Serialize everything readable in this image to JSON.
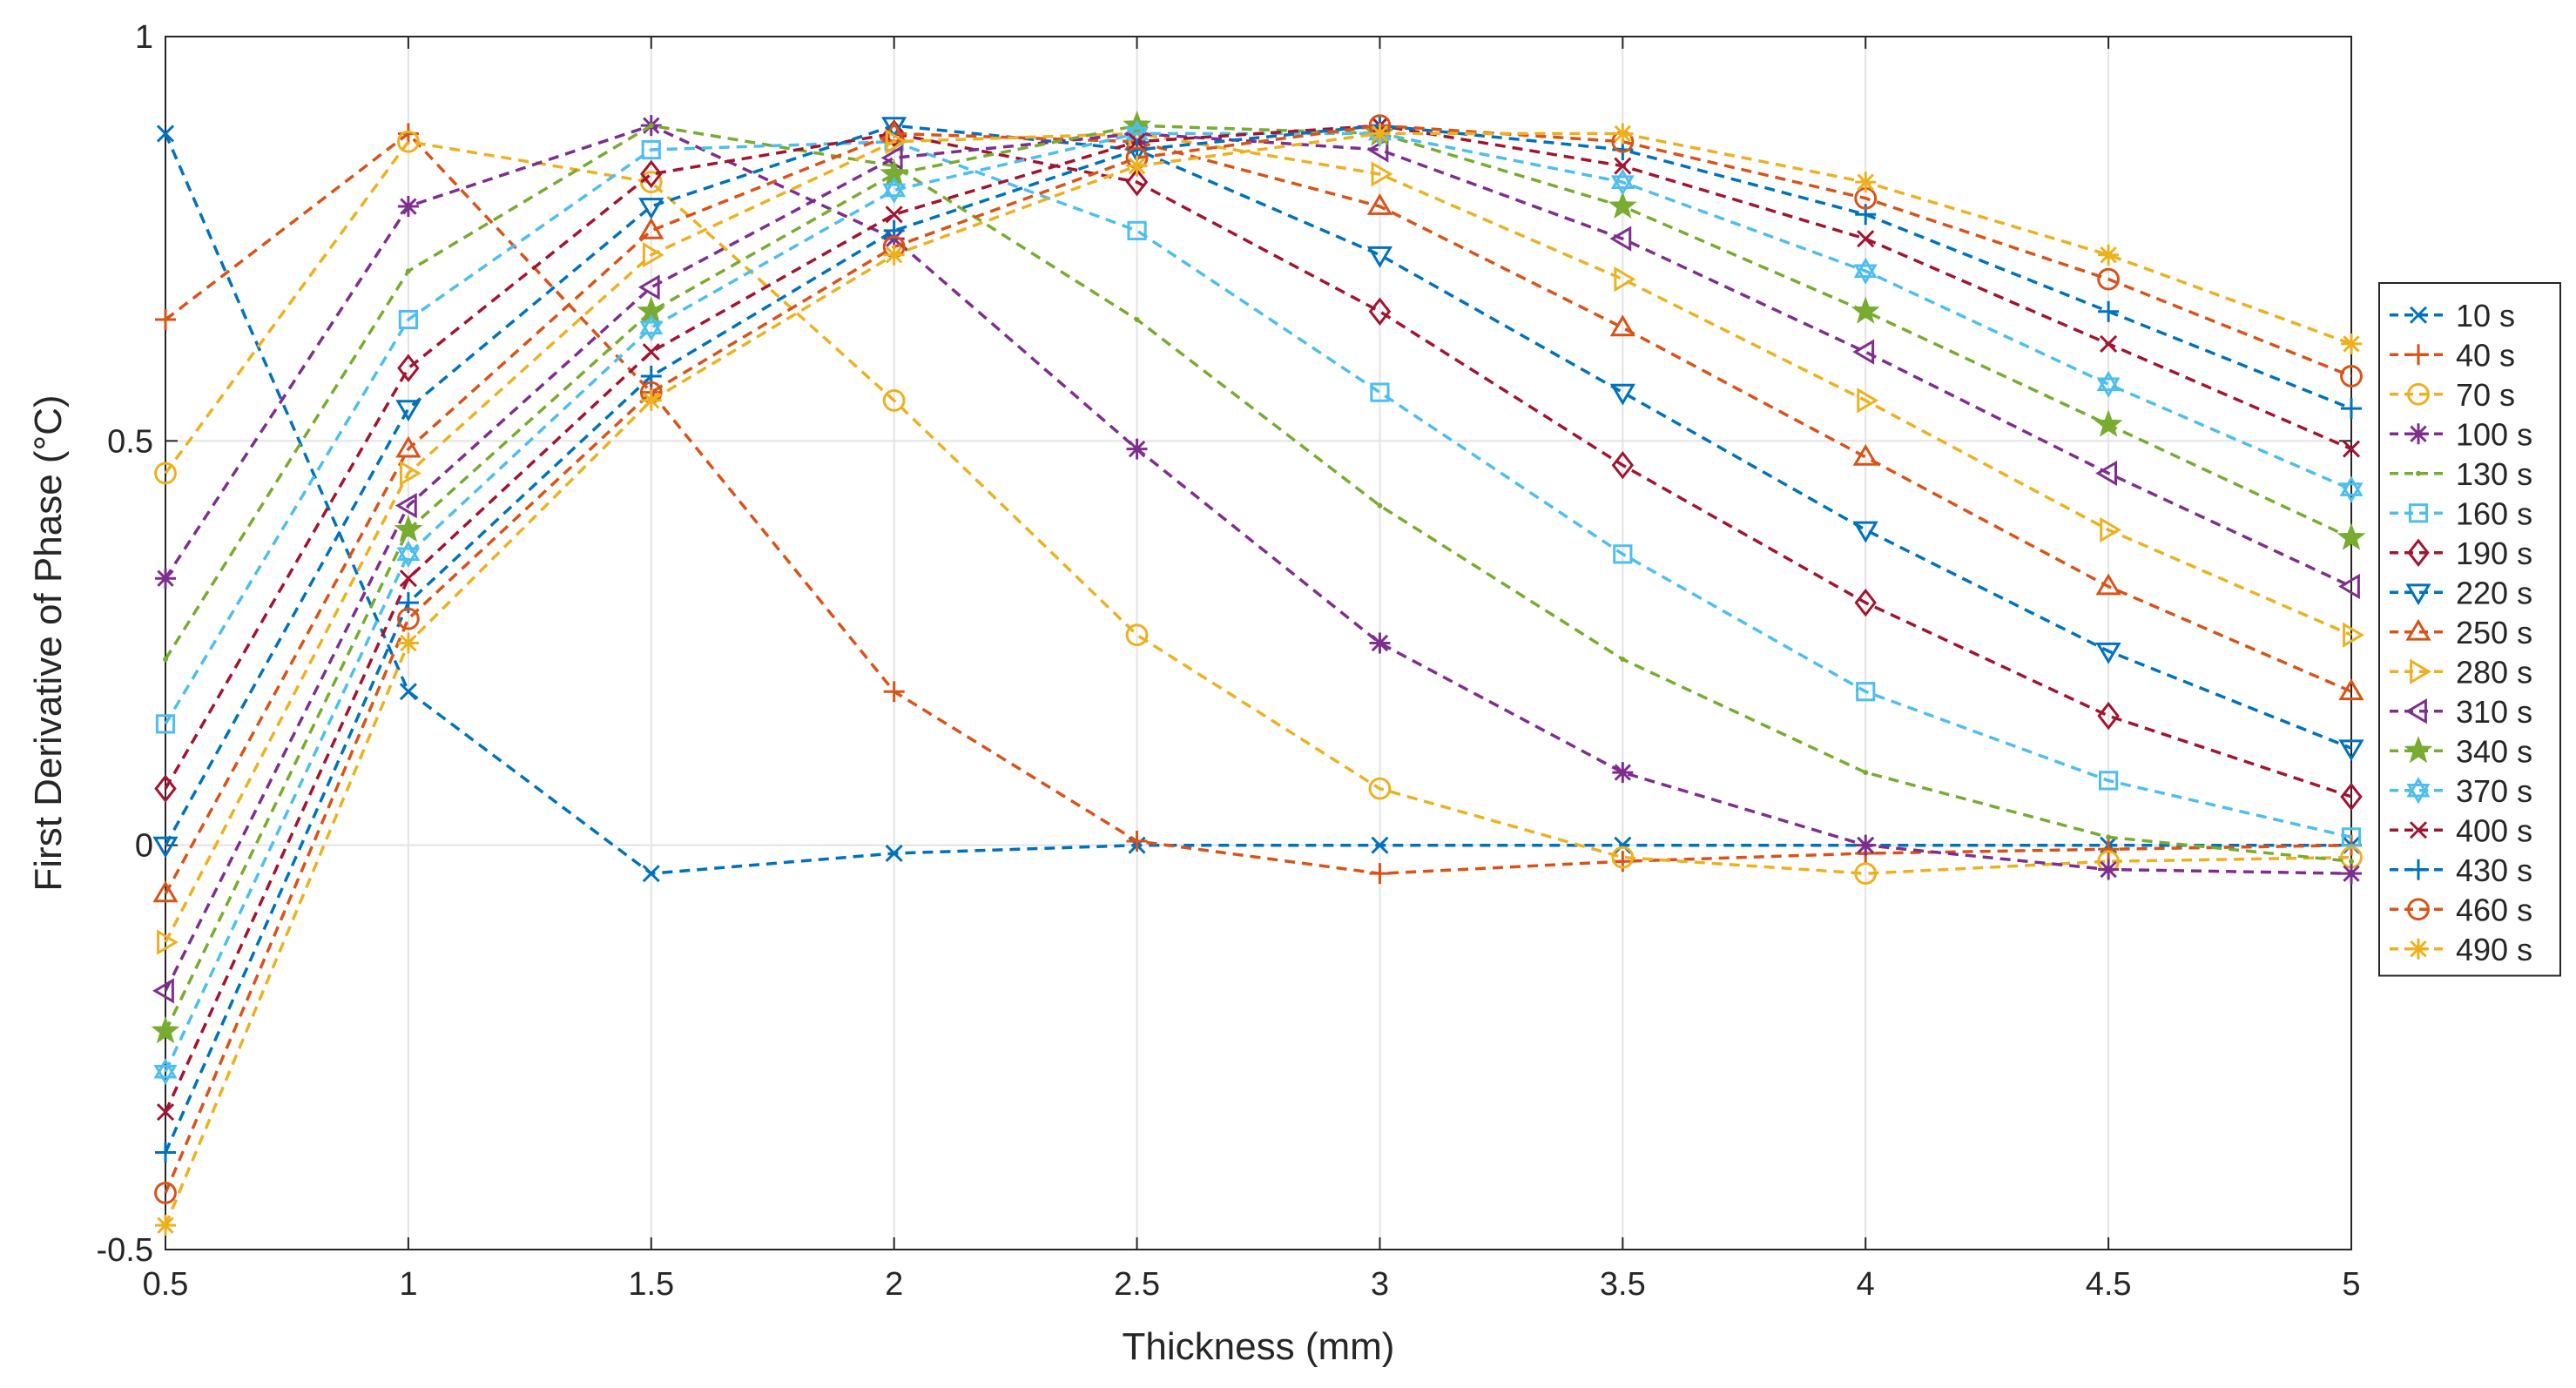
{
  "chart_data": {
    "type": "line",
    "title": "",
    "xlabel": "Thickness (mm)",
    "ylabel": "First Derivative of Phase  (°C)",
    "x": [
      0.5,
      1,
      1.5,
      2,
      2.5,
      3,
      3.5,
      4,
      4.5,
      5
    ],
    "xlim": [
      0.5,
      5
    ],
    "ylim": [
      -0.5,
      1
    ],
    "xticks": [
      "0.5",
      "1",
      "1.5",
      "2",
      "2.5",
      "3",
      "3.5",
      "4",
      "4.5",
      "5"
    ],
    "yticks": [
      "-0.5",
      "0",
      "0.5",
      "1"
    ],
    "grid": true,
    "legend_position": "outside-right",
    "line_style": "dashed",
    "series": [
      {
        "name": "10 s",
        "color": "#0072BD",
        "marker": "x",
        "values": [
          0.88,
          0.19,
          -0.035,
          -0.01,
          0.0,
          0.0,
          0.0,
          0.0,
          0.0,
          0.0
        ]
      },
      {
        "name": "40 s",
        "color": "#D95319",
        "marker": "plus",
        "values": [
          0.65,
          0.88,
          0.56,
          0.19,
          0.005,
          -0.035,
          -0.02,
          -0.01,
          -0.005,
          0.0
        ]
      },
      {
        "name": "70 s",
        "color": "#EDB120",
        "marker": "circle",
        "values": [
          0.46,
          0.87,
          0.82,
          0.55,
          0.26,
          0.07,
          -0.015,
          -0.035,
          -0.02,
          -0.015
        ]
      },
      {
        "name": "100 s",
        "color": "#7E2F8E",
        "marker": "asterisk",
        "values": [
          0.33,
          0.79,
          0.89,
          0.75,
          0.49,
          0.25,
          0.09,
          0.0,
          -0.03,
          -0.035
        ]
      },
      {
        "name": "130 s",
        "color": "#77AC30",
        "marker": "point",
        "values": [
          0.23,
          0.71,
          0.89,
          0.84,
          0.65,
          0.42,
          0.23,
          0.09,
          0.01,
          -0.02
        ]
      },
      {
        "name": "160 s",
        "color": "#4DBEEE",
        "marker": "square",
        "values": [
          0.15,
          0.65,
          0.86,
          0.87,
          0.76,
          0.56,
          0.36,
          0.19,
          0.08,
          0.01
        ]
      },
      {
        "name": "190 s",
        "color": "#A2142F",
        "marker": "diamond",
        "values": [
          0.07,
          0.59,
          0.83,
          0.88,
          0.82,
          0.66,
          0.47,
          0.3,
          0.16,
          0.06
        ]
      },
      {
        "name": "220 s",
        "color": "#0072BD",
        "marker": "tri-down",
        "values": [
          0.0,
          0.54,
          0.79,
          0.89,
          0.86,
          0.73,
          0.56,
          0.39,
          0.24,
          0.12
        ]
      },
      {
        "name": "250 s",
        "color": "#D95319",
        "marker": "tri-up",
        "values": [
          -0.06,
          0.49,
          0.76,
          0.88,
          0.87,
          0.79,
          0.64,
          0.48,
          0.32,
          0.19
        ]
      },
      {
        "name": "280 s",
        "color": "#EDB120",
        "marker": "tri-right",
        "values": [
          -0.12,
          0.46,
          0.73,
          0.87,
          0.88,
          0.83,
          0.7,
          0.55,
          0.39,
          0.26
        ]
      },
      {
        "name": "310 s",
        "color": "#7E2F8E",
        "marker": "tri-left",
        "values": [
          -0.18,
          0.42,
          0.69,
          0.85,
          0.88,
          0.86,
          0.75,
          0.61,
          0.46,
          0.32
        ]
      },
      {
        "name": "340 s",
        "color": "#77AC30",
        "marker": "pentagram",
        "values": [
          -0.23,
          0.39,
          0.66,
          0.83,
          0.89,
          0.88,
          0.79,
          0.66,
          0.52,
          0.38
        ]
      },
      {
        "name": "370 s",
        "color": "#4DBEEE",
        "marker": "hexagram",
        "values": [
          -0.28,
          0.36,
          0.64,
          0.81,
          0.88,
          0.88,
          0.82,
          0.71,
          0.57,
          0.44
        ]
      },
      {
        "name": "400 s",
        "color": "#A2142F",
        "marker": "x",
        "values": [
          -0.33,
          0.33,
          0.61,
          0.78,
          0.87,
          0.89,
          0.84,
          0.75,
          0.62,
          0.49
        ]
      },
      {
        "name": "430 s",
        "color": "#0072BD",
        "marker": "plus",
        "values": [
          -0.38,
          0.3,
          0.58,
          0.76,
          0.86,
          0.89,
          0.86,
          0.78,
          0.66,
          0.54
        ]
      },
      {
        "name": "460 s",
        "color": "#D95319",
        "marker": "circle",
        "values": [
          -0.43,
          0.28,
          0.56,
          0.74,
          0.85,
          0.89,
          0.87,
          0.8,
          0.7,
          0.58
        ]
      },
      {
        "name": "490 s",
        "color": "#EDB120",
        "marker": "asterisk",
        "values": [
          -0.47,
          0.25,
          0.55,
          0.73,
          0.84,
          0.88,
          0.88,
          0.82,
          0.73,
          0.62
        ]
      }
    ]
  }
}
